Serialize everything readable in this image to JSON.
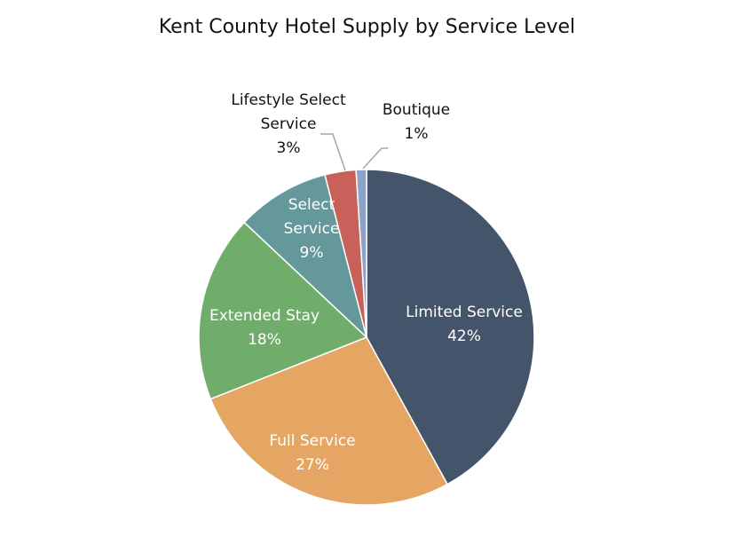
{
  "chart_data": {
    "type": "pie",
    "title": "Kent County Hotel Supply by Service Level",
    "slices": [
      {
        "name": "Limited Service",
        "value": 42,
        "label": "42%",
        "color": "#44546a",
        "label_lines": [
          "Limited Service",
          "42%"
        ],
        "label_color": "#ffffff",
        "label_position": "inside"
      },
      {
        "name": "Full Service",
        "value": 27,
        "label": "27%",
        "color": "#e5a663",
        "label_lines": [
          "Full Service",
          "27%"
        ],
        "label_color": "#ffffff",
        "label_position": "inside"
      },
      {
        "name": "Extended Stay",
        "value": 18,
        "label": "18%",
        "color": "#70ad6b",
        "label_lines": [
          "Extended Stay",
          "18%"
        ],
        "label_color": "#ffffff",
        "label_position": "inside"
      },
      {
        "name": "Select Service",
        "value": 9,
        "label": "9%",
        "color": "#64989b",
        "label_lines": [
          "Select",
          "Service",
          "9%"
        ],
        "label_color": "#ffffff",
        "label_position": "inside"
      },
      {
        "name": "Lifestyle Select Service",
        "value": 3,
        "label": "3%",
        "color": "#c8615a",
        "label_lines": [
          "Lifestyle Select",
          "Service",
          "3%"
        ],
        "label_color": "#111111",
        "label_position": "outside-left"
      },
      {
        "name": "Boutique",
        "value": 1,
        "label": "1%",
        "color": "#8aa3c9",
        "label_lines": [
          "Boutique",
          "1%"
        ],
        "label_color": "#111111",
        "label_position": "outside-right"
      }
    ]
  }
}
